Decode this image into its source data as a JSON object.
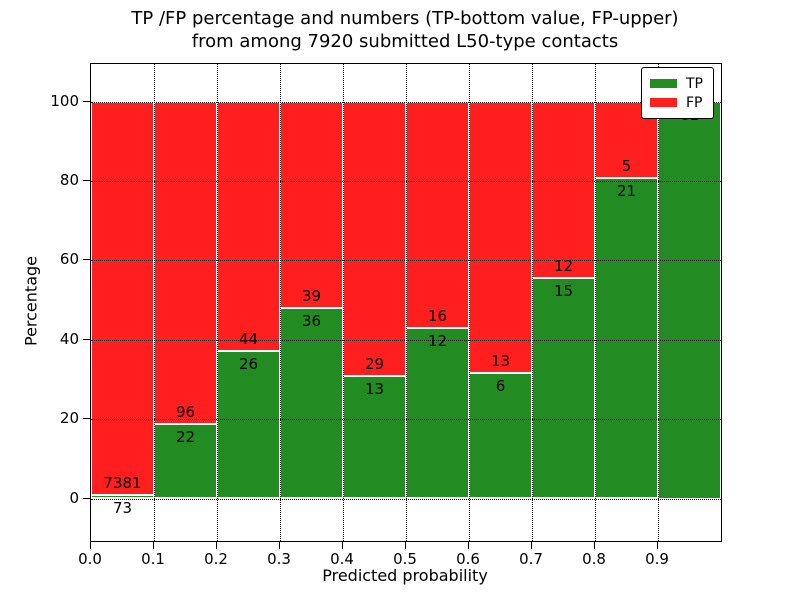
{
  "title": {
    "line1": "TP /FP percentage and numbers (TP-bottom value, FP-upper)",
    "line2": "from among 7920 submitted L50-type contacts"
  },
  "chart_data": {
    "type": "bar",
    "stacked": true,
    "note": "stacked to 100% per bin; numeric count labels on segments",
    "bins": [
      "0.0-0.1",
      "0.1-0.2",
      "0.2-0.3",
      "0.3-0.4",
      "0.4-0.5",
      "0.5-0.6",
      "0.6-0.7",
      "0.7-0.8",
      "0.8-0.9",
      "0.9-1.0"
    ],
    "series": [
      {
        "name": "TP",
        "color": "#228B22",
        "values": [
          73,
          22,
          26,
          36,
          13,
          12,
          6,
          15,
          21,
          61
        ]
      },
      {
        "name": "FP",
        "color": "#FF1F1F",
        "values": [
          7381,
          96,
          44,
          39,
          29,
          16,
          13,
          12,
          5,
          0
        ]
      }
    ],
    "xlabel": "Predicted probability",
    "ylabel": "Percentage",
    "xticks": [
      "0.0",
      "0.1",
      "0.2",
      "0.3",
      "0.4",
      "0.5",
      "0.6",
      "0.7",
      "0.8",
      "0.9"
    ],
    "yticks": [
      0,
      20,
      40,
      60,
      80,
      100
    ],
    "xlim": [
      0.0,
      1.0
    ],
    "ylim": [
      -10.7,
      109.4
    ],
    "grid": "dotted, drawn over bars",
    "legend": {
      "position": "upper right",
      "entries": [
        {
          "label": "TP",
          "color": "#228B22"
        },
        {
          "label": "FP",
          "color": "#FF1F1F"
        }
      ]
    }
  }
}
